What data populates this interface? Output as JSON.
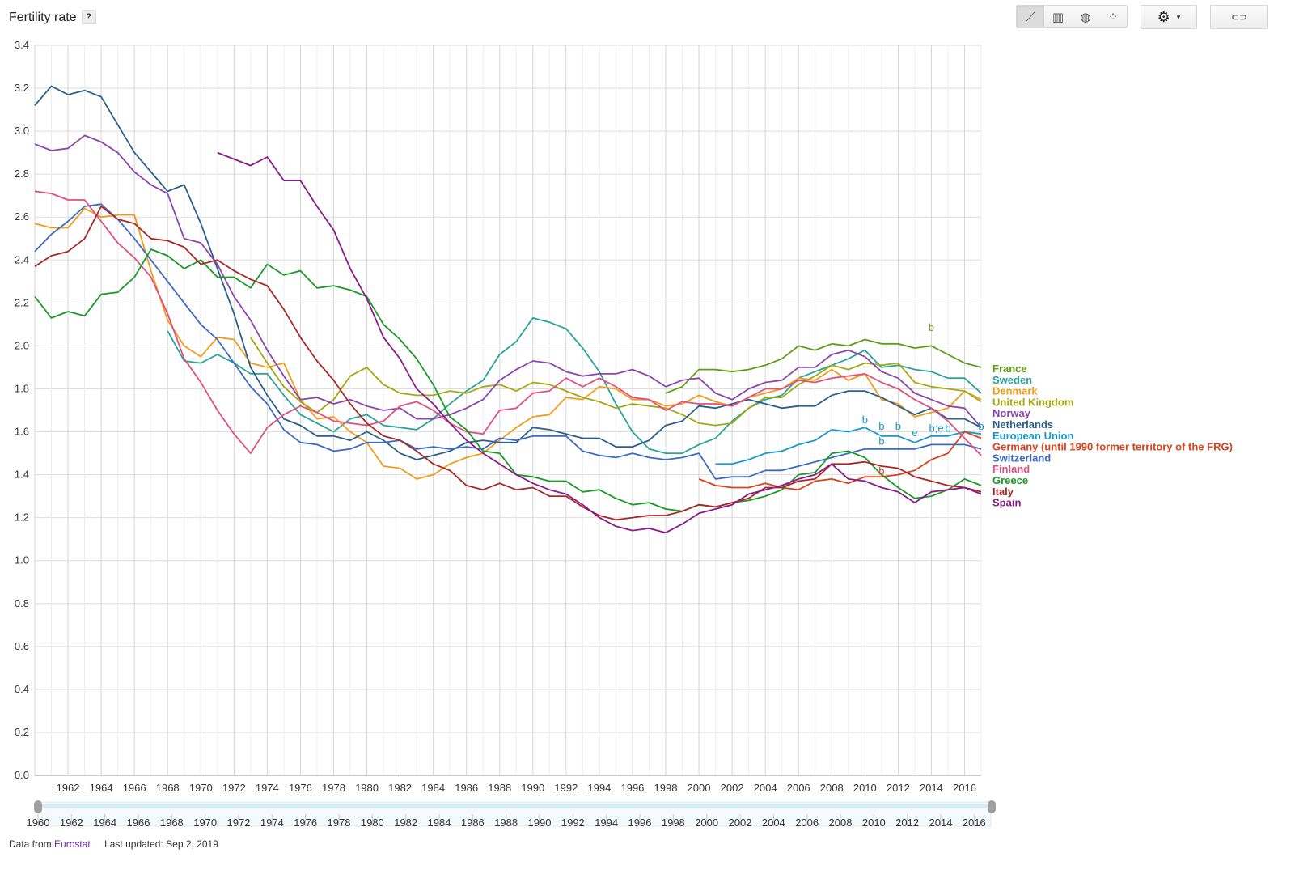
{
  "header": {
    "title": "Fertility rate",
    "help": "?"
  },
  "toolbar": {
    "views": [
      {
        "name": "line-chart-icon",
        "glyph": "⟋",
        "active": true
      },
      {
        "name": "bar-chart-icon",
        "glyph": "▥",
        "active": false
      },
      {
        "name": "map-icon",
        "glyph": "◍",
        "active": false
      },
      {
        "name": "scatter-chart-icon",
        "glyph": "⁘",
        "active": false
      }
    ],
    "settings_glyph": "⚙",
    "caret_glyph": "▾",
    "link_glyph": "⊂⊃"
  },
  "footer": {
    "data_from": "Data from",
    "source": "Eurostat",
    "updated": "Last updated: Sep 2, 2019"
  },
  "chart_data": {
    "type": "line",
    "x": [
      1960,
      1961,
      1962,
      1963,
      1964,
      1965,
      1966,
      1967,
      1968,
      1969,
      1970,
      1971,
      1972,
      1973,
      1974,
      1975,
      1976,
      1977,
      1978,
      1979,
      1980,
      1981,
      1982,
      1983,
      1984,
      1985,
      1986,
      1987,
      1988,
      1989,
      1990,
      1991,
      1992,
      1993,
      1994,
      1995,
      1996,
      1997,
      1998,
      1999,
      2000,
      2001,
      2002,
      2003,
      2004,
      2005,
      2006,
      2007,
      2008,
      2009,
      2010,
      2011,
      2012,
      2013,
      2014,
      2015,
      2016,
      2017
    ],
    "ylim": [
      0,
      3.4
    ],
    "yticks": [
      "0.0",
      "0.2",
      "0.4",
      "0.6",
      "0.8",
      "1.0",
      "1.2",
      "1.4",
      "1.6",
      "1.8",
      "2.0",
      "2.2",
      "2.4",
      "2.6",
      "2.8",
      "3.0",
      "3.2",
      "3.4"
    ],
    "xticks": [
      "1962",
      "1964",
      "1966",
      "1968",
      "1970",
      "1972",
      "1974",
      "1976",
      "1978",
      "1980",
      "1982",
      "1984",
      "1986",
      "1988",
      "1990",
      "1992",
      "1994",
      "1996",
      "1998",
      "2000",
      "2002",
      "2004",
      "2006",
      "2008",
      "2010",
      "2012",
      "2014",
      "2016"
    ],
    "range_ticks": [
      "1960",
      "1962",
      "1964",
      "1966",
      "1968",
      "1970",
      "1972",
      "1974",
      "1976",
      "1978",
      "1980",
      "1982",
      "1984",
      "1986",
      "1988",
      "1990",
      "1992",
      "1994",
      "1996",
      "1998",
      "2000",
      "2002",
      "2004",
      "2006",
      "2008",
      "2010",
      "2012",
      "2014",
      "2016"
    ],
    "grid": true,
    "legend": "right",
    "series": [
      {
        "name": "France",
        "color": "#5e9e13",
        "values": [
          null,
          null,
          null,
          null,
          null,
          null,
          null,
          null,
          null,
          null,
          null,
          null,
          null,
          null,
          null,
          null,
          null,
          null,
          null,
          null,
          null,
          null,
          null,
          null,
          null,
          null,
          null,
          null,
          null,
          null,
          null,
          null,
          null,
          null,
          null,
          null,
          null,
          null,
          1.78,
          1.81,
          1.89,
          1.89,
          1.88,
          1.89,
          1.91,
          1.94,
          2.0,
          1.98,
          2.01,
          2.0,
          2.03,
          2.01,
          2.01,
          1.99,
          2.0,
          1.96,
          1.92,
          1.9
        ]
      },
      {
        "name": "Sweden",
        "color": "#2aa39c",
        "values": [
          null,
          null,
          null,
          null,
          null,
          null,
          null,
          null,
          2.07,
          1.93,
          1.92,
          1.96,
          1.92,
          1.87,
          1.87,
          1.77,
          1.68,
          1.64,
          1.6,
          1.66,
          1.68,
          1.63,
          1.62,
          1.61,
          1.66,
          1.73,
          1.79,
          1.84,
          1.96,
          2.02,
          2.13,
          2.11,
          2.08,
          1.99,
          1.88,
          1.73,
          1.6,
          1.52,
          1.5,
          1.5,
          1.54,
          1.57,
          1.65,
          1.71,
          1.75,
          1.77,
          1.85,
          1.88,
          1.91,
          1.94,
          1.98,
          1.9,
          1.91,
          1.89,
          1.88,
          1.85,
          1.85,
          1.78
        ]
      },
      {
        "name": "Denmark",
        "color": "#f39c19",
        "values": [
          2.57,
          2.55,
          2.55,
          2.64,
          2.6,
          2.61,
          2.61,
          2.35,
          2.12,
          2.0,
          1.95,
          2.04,
          2.03,
          1.92,
          1.9,
          1.92,
          1.75,
          1.66,
          1.67,
          1.6,
          1.55,
          1.44,
          1.43,
          1.38,
          1.4,
          1.45,
          1.48,
          1.5,
          1.56,
          1.62,
          1.67,
          1.68,
          1.76,
          1.75,
          1.81,
          1.8,
          1.75,
          1.75,
          1.72,
          1.73,
          1.77,
          1.74,
          1.72,
          1.76,
          1.78,
          1.8,
          1.85,
          1.84,
          1.89,
          1.84,
          1.87,
          1.75,
          1.73,
          1.67,
          1.69,
          1.71,
          1.79,
          1.75
        ]
      },
      {
        "name": "United Kingdom",
        "color": "#a3a813",
        "values": [
          null,
          null,
          null,
          null,
          null,
          null,
          null,
          null,
          null,
          null,
          null,
          null,
          null,
          2.04,
          1.92,
          1.81,
          1.74,
          1.69,
          1.75,
          1.86,
          1.9,
          1.82,
          1.78,
          1.77,
          1.77,
          1.79,
          1.78,
          1.81,
          1.82,
          1.79,
          1.83,
          1.82,
          1.79,
          1.76,
          1.74,
          1.71,
          1.73,
          1.72,
          1.71,
          1.68,
          1.64,
          1.63,
          1.64,
          1.71,
          1.76,
          1.76,
          1.82,
          1.86,
          1.91,
          1.89,
          1.92,
          1.91,
          1.92,
          1.83,
          1.81,
          1.8,
          1.79,
          1.74
        ]
      },
      {
        "name": "Norway",
        "color": "#8e44ad",
        "values": [
          2.94,
          2.91,
          2.92,
          2.98,
          2.95,
          2.9,
          2.81,
          2.75,
          2.71,
          2.5,
          2.48,
          2.38,
          2.23,
          2.12,
          1.98,
          1.86,
          1.75,
          1.76,
          1.73,
          1.75,
          1.72,
          1.7,
          1.71,
          1.66,
          1.66,
          1.68,
          1.71,
          1.75,
          1.84,
          1.89,
          1.93,
          1.92,
          1.88,
          1.86,
          1.87,
          1.87,
          1.89,
          1.86,
          1.81,
          1.84,
          1.85,
          1.78,
          1.75,
          1.8,
          1.83,
          1.84,
          1.9,
          1.9,
          1.96,
          1.98,
          1.95,
          1.88,
          1.85,
          1.78,
          1.75,
          1.72,
          1.71,
          1.62
        ]
      },
      {
        "name": "Netherlands",
        "color": "#2c5f8a",
        "values": [
          3.12,
          3.21,
          3.17,
          3.19,
          3.16,
          3.03,
          2.9,
          2.81,
          2.72,
          2.75,
          2.57,
          2.36,
          2.15,
          1.9,
          1.77,
          1.66,
          1.63,
          1.58,
          1.58,
          1.56,
          1.6,
          1.56,
          1.5,
          1.47,
          1.49,
          1.51,
          1.55,
          1.56,
          1.55,
          1.55,
          1.62,
          1.61,
          1.59,
          1.57,
          1.57,
          1.53,
          1.53,
          1.56,
          1.63,
          1.65,
          1.72,
          1.71,
          1.73,
          1.75,
          1.73,
          1.71,
          1.72,
          1.72,
          1.77,
          1.79,
          1.79,
          1.76,
          1.72,
          1.68,
          1.71,
          1.66,
          1.66,
          1.62
        ]
      },
      {
        "name": "European Union",
        "color": "#1b98c5",
        "values": [
          null,
          null,
          null,
          null,
          null,
          null,
          null,
          null,
          null,
          null,
          null,
          null,
          null,
          null,
          null,
          null,
          null,
          null,
          null,
          null,
          null,
          null,
          null,
          null,
          null,
          null,
          null,
          null,
          null,
          null,
          null,
          null,
          null,
          null,
          null,
          null,
          null,
          null,
          null,
          null,
          null,
          1.45,
          1.45,
          1.47,
          1.5,
          1.51,
          1.54,
          1.56,
          1.61,
          1.6,
          1.62,
          1.58,
          1.58,
          1.55,
          1.58,
          1.58,
          1.6,
          1.59
        ]
      },
      {
        "name": "Germany (until 1990 former territory of the FRG)",
        "color": "#d9431e",
        "values": [
          null,
          null,
          null,
          null,
          null,
          null,
          null,
          null,
          null,
          null,
          null,
          null,
          null,
          null,
          null,
          null,
          null,
          null,
          null,
          null,
          null,
          null,
          null,
          null,
          null,
          null,
          null,
          null,
          null,
          null,
          null,
          null,
          null,
          null,
          null,
          null,
          null,
          null,
          null,
          null,
          1.38,
          1.35,
          1.34,
          1.34,
          1.36,
          1.34,
          1.33,
          1.37,
          1.38,
          1.36,
          1.39,
          1.39,
          1.4,
          1.42,
          1.47,
          1.5,
          1.6,
          1.57
        ]
      },
      {
        "name": "Switzerland",
        "color": "#3c6bc4",
        "values": [
          2.44,
          2.52,
          2.58,
          2.65,
          2.66,
          2.59,
          2.5,
          2.4,
          2.3,
          2.2,
          2.1,
          2.03,
          1.92,
          1.81,
          1.73,
          1.61,
          1.55,
          1.54,
          1.51,
          1.52,
          1.55,
          1.55,
          1.56,
          1.52,
          1.53,
          1.52,
          1.53,
          1.52,
          1.57,
          1.56,
          1.58,
          1.58,
          1.58,
          1.51,
          1.49,
          1.48,
          1.5,
          1.48,
          1.47,
          1.48,
          1.5,
          1.38,
          1.39,
          1.39,
          1.42,
          1.42,
          1.44,
          1.46,
          1.48,
          1.5,
          1.52,
          1.52,
          1.52,
          1.52,
          1.54,
          1.54,
          1.54,
          1.52
        ]
      },
      {
        "name": "Finland",
        "color": "#e0507e",
        "values": [
          2.72,
          2.71,
          2.68,
          2.68,
          2.58,
          2.48,
          2.41,
          2.32,
          2.15,
          1.94,
          1.83,
          1.7,
          1.59,
          1.5,
          1.62,
          1.68,
          1.72,
          1.69,
          1.65,
          1.64,
          1.63,
          1.65,
          1.72,
          1.74,
          1.7,
          1.64,
          1.6,
          1.59,
          1.7,
          1.71,
          1.78,
          1.79,
          1.85,
          1.81,
          1.85,
          1.81,
          1.76,
          1.75,
          1.7,
          1.74,
          1.73,
          1.73,
          1.72,
          1.76,
          1.8,
          1.8,
          1.84,
          1.83,
          1.85,
          1.86,
          1.87,
          1.83,
          1.8,
          1.75,
          1.71,
          1.65,
          1.57,
          1.49
        ]
      },
      {
        "name": "Greece",
        "color": "#1a9a26",
        "values": [
          2.23,
          2.13,
          2.16,
          2.14,
          2.24,
          2.25,
          2.32,
          2.45,
          2.42,
          2.36,
          2.4,
          2.32,
          2.32,
          2.27,
          2.38,
          2.33,
          2.35,
          2.27,
          2.28,
          2.26,
          2.23,
          2.1,
          2.03,
          1.94,
          1.82,
          1.67,
          1.61,
          1.51,
          1.5,
          1.4,
          1.39,
          1.37,
          1.37,
          1.32,
          1.33,
          1.29,
          1.26,
          1.27,
          1.24,
          1.23,
          1.26,
          1.25,
          1.27,
          1.28,
          1.3,
          1.33,
          1.4,
          1.41,
          1.5,
          1.51,
          1.48,
          1.4,
          1.34,
          1.29,
          1.3,
          1.33,
          1.38,
          1.35
        ]
      },
      {
        "name": "Italy",
        "color": "#a82828",
        "values": [
          2.37,
          2.42,
          2.44,
          2.5,
          2.65,
          2.59,
          2.57,
          2.5,
          2.49,
          2.46,
          2.38,
          2.4,
          2.35,
          2.31,
          2.28,
          2.17,
          2.04,
          1.93,
          1.84,
          1.73,
          1.64,
          1.58,
          1.56,
          1.51,
          1.45,
          1.42,
          1.35,
          1.33,
          1.36,
          1.33,
          1.34,
          1.3,
          1.3,
          1.25,
          1.21,
          1.19,
          1.2,
          1.21,
          1.21,
          1.23,
          1.26,
          1.25,
          1.27,
          1.29,
          1.34,
          1.34,
          1.37,
          1.38,
          1.45,
          1.45,
          1.46,
          1.44,
          1.43,
          1.39,
          1.37,
          1.35,
          1.34,
          1.32
        ]
      },
      {
        "name": "Spain",
        "color": "#8b1a8b",
        "values": [
          null,
          null,
          null,
          null,
          null,
          null,
          null,
          null,
          null,
          null,
          null,
          2.9,
          2.87,
          2.84,
          2.88,
          2.77,
          2.77,
          2.65,
          2.54,
          2.36,
          2.22,
          2.04,
          1.94,
          1.8,
          1.73,
          1.64,
          1.56,
          1.5,
          1.45,
          1.4,
          1.36,
          1.33,
          1.31,
          1.26,
          1.2,
          1.16,
          1.14,
          1.15,
          1.13,
          1.17,
          1.22,
          1.24,
          1.26,
          1.31,
          1.33,
          1.35,
          1.38,
          1.4,
          1.45,
          1.38,
          1.37,
          1.34,
          1.32,
          1.27,
          1.32,
          1.33,
          1.34,
          1.31
        ]
      }
    ],
    "annotations": [
      {
        "text": "b",
        "x": 2014,
        "y": 2.07,
        "color": "#5e9e13"
      },
      {
        "text": "b",
        "x": 2010,
        "y": 1.64,
        "color": "#1b98c5"
      },
      {
        "text": "b",
        "x": 2011,
        "y": 1.61,
        "color": "#1b98c5"
      },
      {
        "text": "b",
        "x": 2012,
        "y": 1.61,
        "color": "#1b98c5"
      },
      {
        "text": "e",
        "x": 2013,
        "y": 1.58,
        "color": "#1b98c5"
      },
      {
        "text": "b;e",
        "x": 2014.3,
        "y": 1.6,
        "color": "#1b98c5"
      },
      {
        "text": "b",
        "x": 2015,
        "y": 1.6,
        "color": "#1b98c5"
      },
      {
        "text": "b",
        "x": 2017,
        "y": 1.61,
        "color": "#1b98c5"
      },
      {
        "text": "b",
        "x": 2011,
        "y": 1.54,
        "color": "#1b98c5"
      },
      {
        "text": "b",
        "x": 2011,
        "y": 1.4,
        "color": "#d9431e"
      }
    ]
  }
}
